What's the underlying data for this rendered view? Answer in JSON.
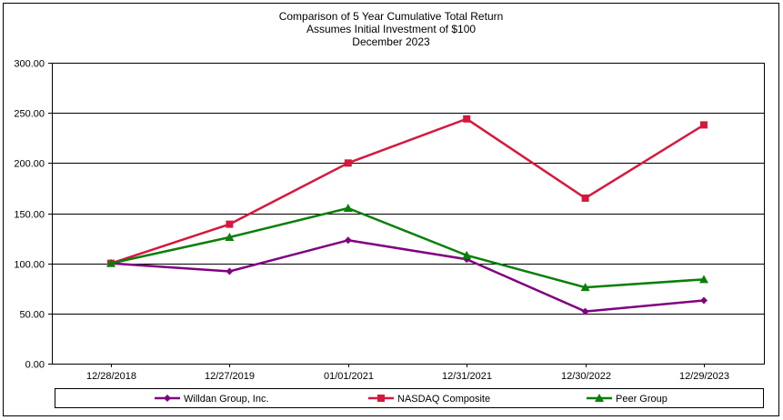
{
  "chart_data": {
    "type": "line",
    "title": [
      "Comparison of 5 Year Cumulative Total Return",
      "Assumes Initial Investment of $100",
      "December 2023"
    ],
    "categories": [
      "12/28/2018",
      "12/27/2019",
      "01/01/2021",
      "12/31/2021",
      "12/30/2022",
      "12/29/2023"
    ],
    "ylim": [
      0,
      300
    ],
    "yticks": [
      "0.00",
      "50.00",
      "100.00",
      "150.00",
      "200.00",
      "250.00",
      "300.00"
    ],
    "grid": true,
    "legend_position": "bottom",
    "series": [
      {
        "name": "Willdan Group, Inc.",
        "color": "#800080",
        "marker": "diamond",
        "values": [
          100,
          92,
          123,
          104,
          52,
          63
        ]
      },
      {
        "name": "NASDAQ Composite",
        "color": "#d6173f",
        "marker": "square",
        "values": [
          100,
          139,
          200,
          244,
          165,
          238
        ]
      },
      {
        "name": "Peer Group",
        "color": "#0a7f0a",
        "marker": "triangle",
        "values": [
          100,
          126,
          155,
          108,
          76,
          84
        ]
      }
    ]
  }
}
